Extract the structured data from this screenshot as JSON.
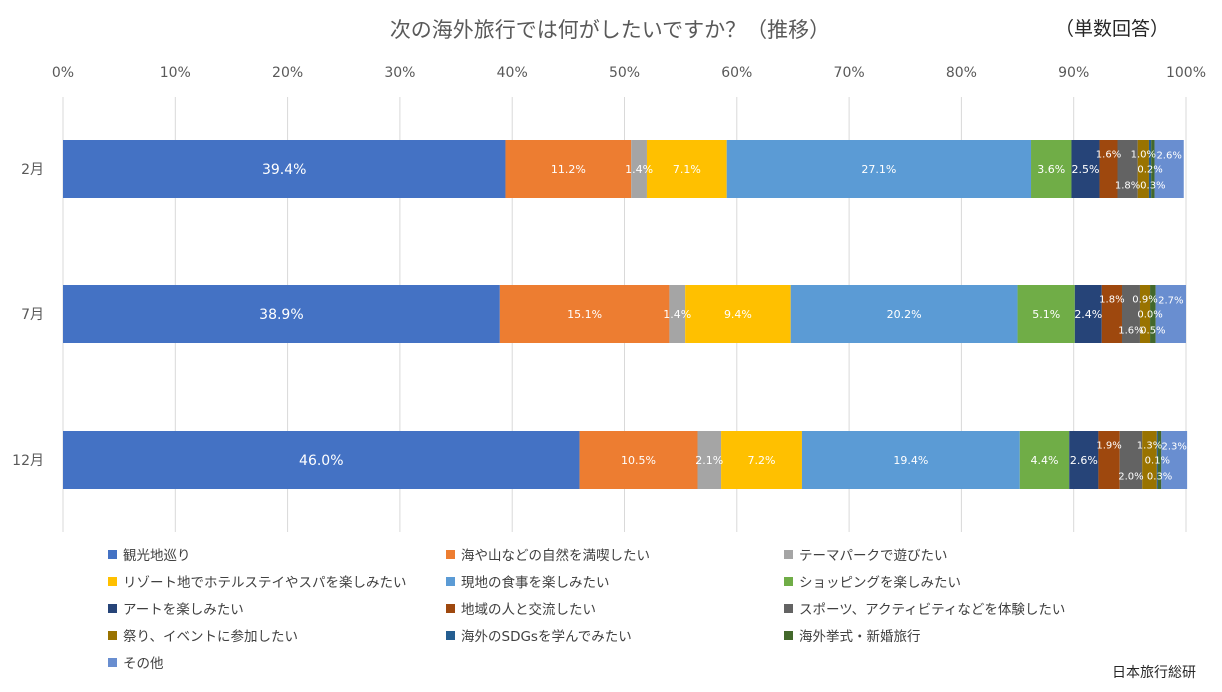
{
  "chart_data": {
    "type": "bar",
    "orientation": "horizontal",
    "stacked": true,
    "normalized": true,
    "title": "次の海外旅行では何がしたいですか？（推移）",
    "unit_label": "（単数回答）",
    "source": "日本旅行総研",
    "categories": [
      "2月",
      "7月",
      "12月"
    ],
    "xlim": [
      0,
      100
    ],
    "x_ticks": [
      "0%",
      "10%",
      "20%",
      "30%",
      "40%",
      "50%",
      "60%",
      "70%",
      "80%",
      "90%",
      "100%"
    ],
    "grid": true,
    "legend_position": "bottom",
    "series": [
      {
        "name": "観光地巡り",
        "color": "#4472C4",
        "values": [
          39.4,
          38.9,
          46.0
        ],
        "labels": [
          "39.4%",
          "38.9%",
          "46.0%"
        ]
      },
      {
        "name": "海や山などの自然を満喫したい",
        "color": "#ED7D31",
        "values": [
          11.2,
          15.1,
          10.5
        ],
        "labels": [
          "11.2%",
          "15.1%",
          "10.5%"
        ]
      },
      {
        "name": "テーマパークで遊びたい",
        "color": "#A5A5A5",
        "values": [
          1.4,
          1.4,
          2.1
        ],
        "labels": [
          "1.4%",
          "1.4%",
          "2.1%"
        ]
      },
      {
        "name": "リゾート地でホテルステイやスパを楽しみたい",
        "color": "#FFC000",
        "values": [
          7.1,
          9.4,
          7.2
        ],
        "labels": [
          "7.1%",
          "9.4%",
          "7.2%"
        ]
      },
      {
        "name": "現地の食事を楽しみたい",
        "color": "#5B9BD5",
        "values": [
          27.1,
          20.2,
          19.4
        ],
        "labels": [
          "27.1%",
          "20.2%",
          "19.4%"
        ]
      },
      {
        "name": "ショッピングを楽しみたい",
        "color": "#70AD47",
        "values": [
          3.6,
          5.1,
          4.4
        ],
        "labels": [
          "3.6%",
          "5.1%",
          "4.4%"
        ]
      },
      {
        "name": "アートを楽しみたい",
        "color": "#264478",
        "values": [
          2.5,
          2.4,
          2.6
        ],
        "labels": [
          "2.5%",
          "2.4%",
          "2.6%"
        ]
      },
      {
        "name": "地域の人と交流したい",
        "color": "#9E480E",
        "values": [
          1.6,
          1.8,
          1.9
        ],
        "labels": [
          "1.6%",
          "1.8%",
          "1.9%"
        ]
      },
      {
        "name": "スポーツ、アクティビティなどを体験したい",
        "color": "#636363",
        "values": [
          1.8,
          1.6,
          2.0
        ],
        "labels": [
          "1.8%",
          "1.6%",
          "2.0%"
        ]
      },
      {
        "name": "祭り、イベントに参加したい",
        "color": "#997300",
        "values": [
          1.0,
          0.9,
          1.3
        ],
        "labels": [
          "1.0%",
          "0.9%",
          "1.3%"
        ]
      },
      {
        "name": "海外のSDGsを学んでみたい",
        "color": "#255E91",
        "values": [
          0.2,
          0.0,
          0.1
        ],
        "labels": [
          "0.2%",
          "0.0%",
          "0.1%"
        ]
      },
      {
        "name": "海外挙式・新婚旅行",
        "color": "#43682B",
        "values": [
          0.3,
          0.5,
          0.3
        ],
        "labels": [
          "0.3%",
          "0.5%",
          "0.3%"
        ]
      },
      {
        "name": "その他",
        "color": "#698ED0",
        "values": [
          2.6,
          2.7,
          2.3
        ],
        "labels": [
          "2.6%",
          "2.7%",
          "2.3%"
        ]
      }
    ]
  }
}
